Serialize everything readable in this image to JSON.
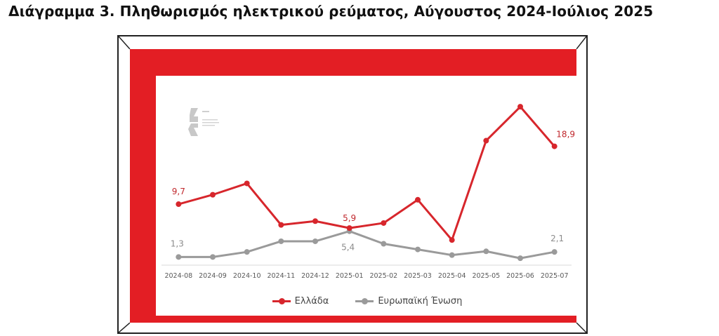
{
  "page_title": "Διάγραμμα 3. Πληθωρισμός ηλεκτρικού ρεύματος, Αύγουστος 2024-Ιούλιος 2025",
  "colors": {
    "frame": "#e31e24",
    "greece": "#d7262c",
    "eu": "#9a9a9a",
    "axis": "#d9d9d9",
    "tick_text": "#595959"
  },
  "legend": {
    "greece_label": "Ελλάδα",
    "eu_label": "Ευρωπαϊκή Ένωση"
  },
  "logo": {
    "icon": "institute-logo"
  },
  "chart_data": {
    "type": "line",
    "title": "Διάγραμμα 3. Πληθωρισμός ηλεκτρικού ρεύματος, Αύγουστος 2024-Ιούλιος 2025",
    "categories": [
      "2024-08",
      "2024-09",
      "2024-10",
      "2024-11",
      "2024-12",
      "2025-01",
      "2025-02",
      "2025-03",
      "2025-04",
      "2025-05",
      "2025-06",
      "2025-07"
    ],
    "series": [
      {
        "name": "Ελλάδα",
        "color": "#d7262c",
        "values": [
          9.7,
          11.2,
          13.0,
          6.4,
          7.0,
          5.9,
          6.7,
          10.4,
          4.0,
          19.8,
          25.2,
          18.9
        ],
        "labels": {
          "0": "9,7",
          "5": "5,9",
          "11": "18,9"
        }
      },
      {
        "name": "Ευρωπαϊκή Ένωση",
        "color": "#9a9a9a",
        "values": [
          1.3,
          1.3,
          2.1,
          3.8,
          3.8,
          5.4,
          3.4,
          2.5,
          1.6,
          2.2,
          1.1,
          2.1
        ],
        "labels": {
          "0": "1,3",
          "5": "5,4",
          "11": "2,1"
        }
      }
    ],
    "ylim": [
      0,
      27
    ],
    "grid": false,
    "legend_position": "bottom"
  }
}
